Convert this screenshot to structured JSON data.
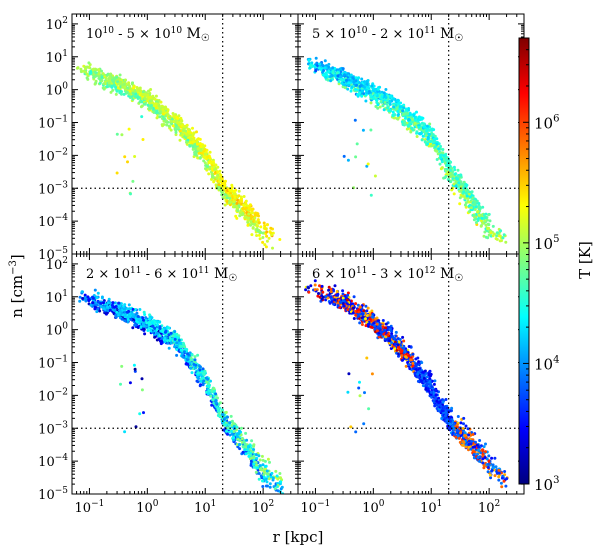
{
  "figure": {
    "ylabel": "n [cm",
    "ylabel_sup": "−3",
    "ylabel_end": "]",
    "xlabel": "r [kpc]",
    "colorbar_label": "T [K]",
    "colorbar_colors": [
      "#00007f",
      "#0000ff",
      "#007fff",
      "#00ffff",
      "#7fff7f",
      "#ffff00",
      "#ff7f00",
      "#ff0000",
      "#7f0000"
    ]
  },
  "chart_data": [
    {
      "type": "scatter",
      "panel": "top-left",
      "label": {
        "a": "10",
        "a_sup": "10",
        "mid": " - 5 × 10",
        "b_sup": "10",
        "unit": " M"
      },
      "x_scale": "log",
      "y_scale": "log",
      "xlim": [
        0.05,
        400
      ],
      "ylim": [
        1e-05,
        200
      ],
      "vline_x": 20,
      "hline_y": 0.001,
      "profile": {
        "r": [
          0.06,
          0.3,
          1,
          3,
          10,
          20,
          50,
          100,
          200
        ],
        "n": [
          5,
          1.5,
          0.5,
          0.1,
          0.01,
          0.001,
          0.0002,
          5e-05,
          2e-05
        ]
      },
      "temperature_range_K": [
        30000,
        300000
      ],
      "series": [
        {
          "name": "",
          "color_trend": [
            "#33aaff",
            "#66ffaa",
            "#aaff66"
          ]
        }
      ]
    },
    {
      "type": "scatter",
      "panel": "top-right",
      "label": {
        "a": "5 × 10",
        "a_sup": "10",
        "mid": " - 2 × 10",
        "b_sup": "11",
        "unit": " M"
      },
      "x_scale": "log",
      "y_scale": "log",
      "xlim": [
        0.05,
        400
      ],
      "ylim": [
        1e-05,
        200
      ],
      "vline_x": 20,
      "hline_y": 0.001,
      "profile": {
        "r": [
          0.06,
          0.3,
          1,
          3,
          10,
          20,
          50,
          100,
          200
        ],
        "n": [
          7,
          2,
          0.7,
          0.2,
          0.03,
          0.003,
          0.0003,
          5e-05,
          2e-05
        ]
      },
      "temperature_range_K": [
        5000,
        200000
      ],
      "series": [
        {
          "name": "",
          "color_trend": [
            "#1a1aff",
            "#2f8fff",
            "#44ddff"
          ]
        }
      ]
    },
    {
      "type": "scatter",
      "panel": "bottom-left",
      "label": {
        "a": "2 × 10",
        "a_sup": "11",
        "mid": " - 6 × 10",
        "b_sup": "11",
        "unit": " M"
      },
      "x_scale": "log",
      "y_scale": "log",
      "xlim": [
        0.05,
        400
      ],
      "ylim": [
        1e-05,
        200
      ],
      "vline_x": 20,
      "hline_y": 0.001,
      "profile": {
        "r": [
          0.06,
          0.3,
          1,
          3,
          10,
          20,
          50,
          100,
          200
        ],
        "n": [
          10,
          4,
          1.5,
          0.5,
          0.03,
          0.002,
          0.0003,
          5e-05,
          2e-05
        ]
      },
      "temperature_range_K": [
        1000,
        100000
      ],
      "series": [
        {
          "name": "",
          "color_trend": [
            "#00007f",
            "#0044ff",
            "#55eecc"
          ]
        }
      ]
    },
    {
      "type": "scatter",
      "panel": "bottom-right",
      "label": {
        "a": "6 × 10",
        "a_sup": "11",
        "mid": " - 3 × 10",
        "b_sup": "12",
        "unit": " M"
      },
      "x_scale": "log",
      "y_scale": "log",
      "xlim": [
        0.05,
        400
      ],
      "ylim": [
        1e-05,
        200
      ],
      "vline_x": 20,
      "hline_y": 0.001,
      "profile": {
        "r": [
          0.06,
          0.3,
          1,
          3,
          10,
          20,
          50,
          100,
          200
        ],
        "n": [
          25,
          8,
          2,
          0.3,
          0.02,
          0.002,
          0.0004,
          0.0001,
          3e-05
        ]
      },
      "temperature_range_K": [
        1000,
        1000000
      ],
      "series": [
        {
          "name": "",
          "color_trend": [
            "#ff9900",
            "#0000cc",
            "#ff3300"
          ]
        }
      ]
    }
  ],
  "colorbar": {
    "scale": "log",
    "range": [
      1000,
      5000000
    ],
    "ticks": [
      {
        "base": "10",
        "exp": "3",
        "v": 1000
      },
      {
        "base": "10",
        "exp": "4",
        "v": 10000
      },
      {
        "base": "10",
        "exp": "5",
        "v": 100000
      },
      {
        "base": "10",
        "exp": "6",
        "v": 1000000
      }
    ]
  },
  "x_ticks": [
    {
      "base": "10",
      "exp": "−1",
      "v": 0.1
    },
    {
      "base": "10",
      "exp": "0",
      "v": 1
    },
    {
      "base": "10",
      "exp": "1",
      "v": 10
    },
    {
      "base": "10",
      "exp": "2",
      "v": 100
    }
  ],
  "y_ticks": [
    {
      "base": "10",
      "exp": "−5",
      "v": 1e-05
    },
    {
      "base": "10",
      "exp": "−4",
      "v": 0.0001
    },
    {
      "base": "10",
      "exp": "−3",
      "v": 0.001
    },
    {
      "base": "10",
      "exp": "−2",
      "v": 0.01
    },
    {
      "base": "10",
      "exp": "−1",
      "v": 0.1
    },
    {
      "base": "10",
      "exp": "0",
      "v": 1
    },
    {
      "base": "10",
      "exp": "1",
      "v": 10
    },
    {
      "base": "10",
      "exp": "2",
      "v": 100
    }
  ]
}
